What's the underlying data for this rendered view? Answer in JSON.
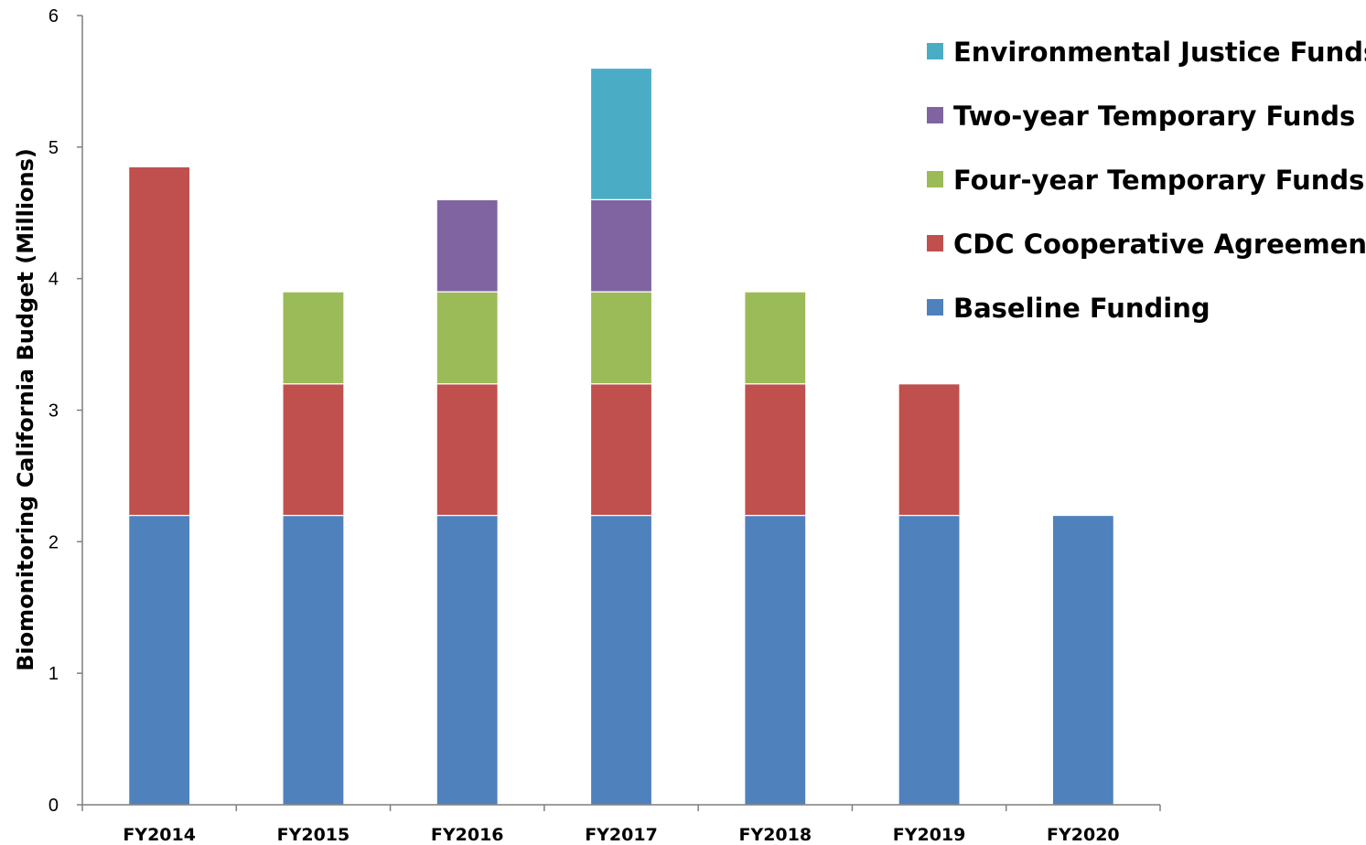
{
  "chart_data": {
    "type": "bar",
    "stacked": true,
    "categories": [
      "FY2014",
      "FY2015",
      "FY2016",
      "FY2017",
      "FY2018",
      "FY2019",
      "FY2020"
    ],
    "series": [
      {
        "name": "Baseline Funding",
        "color": "#4f81bd",
        "values": [
          2.2,
          2.2,
          2.2,
          2.2,
          2.2,
          2.2,
          2.2
        ]
      },
      {
        "name": "CDC Cooperative Agreement",
        "color": "#c0504d",
        "values": [
          2.65,
          1.0,
          1.0,
          1.0,
          1.0,
          1.0,
          0
        ]
      },
      {
        "name": "Four-year Temporary Funds",
        "color": "#9bbb59",
        "values": [
          0,
          0.7,
          0.7,
          0.7,
          0.7,
          0,
          0
        ]
      },
      {
        "name": "Two-year Temporary Funds",
        "color": "#8064a2",
        "values": [
          0,
          0,
          0.7,
          0.7,
          0,
          0,
          0
        ]
      },
      {
        "name": "Environmental Justice Funds",
        "color": "#4bacc6",
        "values": [
          0,
          0,
          0,
          1.0,
          0,
          0,
          0
        ]
      }
    ],
    "legend_order": [
      "Environmental Justice Funds",
      "Two-year Temporary Funds",
      "Four-year Temporary Funds",
      "CDC Cooperative Agreement",
      "Baseline Funding"
    ],
    "legend_position": "top-right",
    "title": "",
    "xlabel": "",
    "ylabel": "Biomonitoring California Budget (Millions)",
    "ylim": [
      0,
      6
    ],
    "yticks": [
      "0",
      "1",
      "2",
      "3",
      "4",
      "5",
      "6"
    ],
    "grid": false
  }
}
